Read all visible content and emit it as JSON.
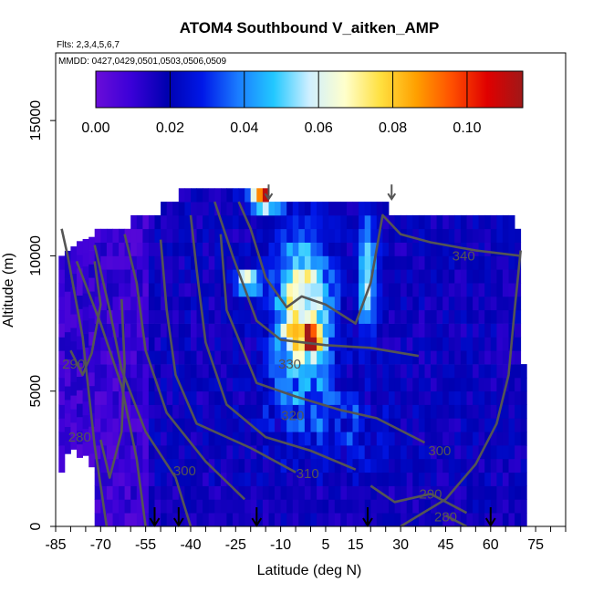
{
  "chart_data": {
    "type": "heatmap",
    "title": "ATOM4 Southbound V_aitken_AMP",
    "subtitle_flights": "Flts: 2,3,4,5,6,7",
    "subtitle_dates": "MMDD: 0427,0429,0501,0503,0506,0509",
    "xlabel": "Latitude (deg N)",
    "ylabel": "Altitude (m)",
    "xlim": [
      -85,
      85
    ],
    "ylim": [
      0,
      17500
    ],
    "x_ticks": [
      -85,
      -70,
      -55,
      -40,
      -25,
      -10,
      5,
      15,
      30,
      45,
      60,
      75
    ],
    "y_ticks": [
      0,
      5000,
      10000,
      15000
    ],
    "colorbar": {
      "min": 0.0,
      "max": 0.115,
      "ticks": [
        "0.00",
        "0.02",
        "0.04",
        "0.06",
        "0.08",
        "0.10"
      ],
      "tick_values": [
        0.0,
        0.02,
        0.04,
        0.06,
        0.08,
        0.1
      ],
      "colors": [
        "#6a0dd8",
        "#3a00d8",
        "#0000b0",
        "#0018e8",
        "#1a7cff",
        "#22c8ff",
        "#cfefff",
        "#ffffcc",
        "#ffe040",
        "#ffa000",
        "#ff5000",
        "#e00000",
        "#a01818"
      ]
    },
    "contour_labels": [
      "340",
      "330",
      "320",
      "310",
      "300",
      "300",
      "290",
      "290",
      "280",
      "280"
    ],
    "contour_color": "#555555",
    "flight_arrows_lat": [
      -52,
      -44,
      -18,
      19,
      60
    ],
    "top_arrows_lat": [
      -14,
      27
    ],
    "grid": false,
    "notes_shown": "potential temperature contours overlaid"
  }
}
